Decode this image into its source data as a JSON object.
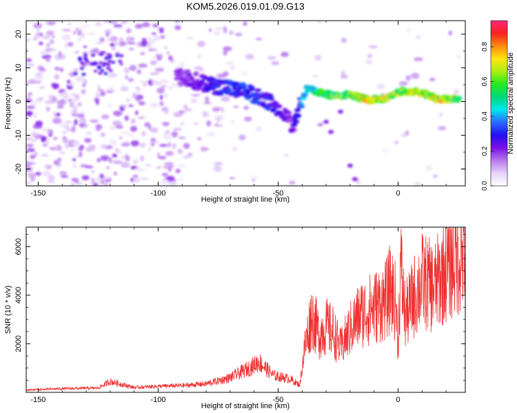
{
  "chart_data": [
    {
      "type": "heatmap",
      "title": "KOM5.2026.019.01.09.G13",
      "xlabel": "Height of straight line (km)",
      "ylabel": "Frequency (Hz)",
      "xlim": [
        -155,
        28
      ],
      "ylim": [
        -25,
        24
      ],
      "xticks": [
        -150,
        -100,
        -50,
        0
      ],
      "yticks": [
        -20,
        -10,
        0,
        10,
        20
      ],
      "colorbar": {
        "label": "Normalized spectral amplitude",
        "range": [
          0,
          0.95
        ],
        "ticks": [
          0.0,
          0.2,
          0.4,
          0.6,
          0.8
        ],
        "colors": [
          "#ffffff",
          "#e6d2f8",
          "#b878ee",
          "#7a10ea",
          "#2010f0",
          "#2a6cff",
          "#00e8f0",
          "#00d87a",
          "#23ea1e",
          "#aaee10",
          "#ffe410",
          "#ff8a10",
          "#f52020",
          "#ff2a78"
        ]
      },
      "ridge": [
        {
          "x": -125,
          "y": 11,
          "amp": 0.26
        },
        {
          "x": -88,
          "y": 7,
          "amp": 0.22
        },
        {
          "x": -80,
          "y": 5,
          "amp": 0.3
        },
        {
          "x": -70,
          "y": 4,
          "amp": 0.34
        },
        {
          "x": -62,
          "y": 2.5,
          "amp": 0.36
        },
        {
          "x": -55,
          "y": 0.5,
          "amp": 0.32
        },
        {
          "x": -48,
          "y": -3,
          "amp": 0.25
        },
        {
          "x": -44,
          "y": -7,
          "amp": 0.22
        },
        {
          "x": -38,
          "y": 4,
          "amp": 0.5
        },
        {
          "x": -30,
          "y": 2,
          "amp": 0.62
        },
        {
          "x": -20,
          "y": 2,
          "amp": 0.68
        },
        {
          "x": -12,
          "y": 0.5,
          "amp": 0.82
        },
        {
          "x": -5,
          "y": 1,
          "amp": 0.75
        },
        {
          "x": 2,
          "y": 3,
          "amp": 0.7
        },
        {
          "x": 10,
          "y": 2.5,
          "amp": 0.72
        },
        {
          "x": 18,
          "y": 0.5,
          "amp": 0.78
        },
        {
          "x": 26,
          "y": 1,
          "amp": 0.65
        }
      ]
    },
    {
      "type": "line",
      "xlabel": "Height of straight line (km)",
      "ylabel": "SNR (10 * v/v)",
      "xlim": [
        -155,
        28
      ],
      "ylim": [
        0,
        6800
      ],
      "xticks": [
        -150,
        -100,
        -50,
        0
      ],
      "yticks": [
        2000,
        4000,
        6000
      ],
      "color": "#f03030",
      "series": [
        {
          "name": "SNR",
          "x": [
            -155,
            -140,
            -125,
            -120,
            -110,
            -100,
            -90,
            -80,
            -70,
            -62,
            -58,
            -52,
            -45,
            -41,
            -39,
            -36,
            -33,
            -30,
            -27,
            -24,
            -20,
            -16,
            -12,
            -8,
            -5,
            -3,
            -1,
            0,
            1,
            3,
            6,
            10,
            15,
            20,
            24,
            28
          ],
          "values": [
            100,
            150,
            180,
            450,
            200,
            250,
            280,
            350,
            600,
            1000,
            1250,
            700,
            550,
            300,
            1800,
            3200,
            2400,
            2700,
            2500,
            1800,
            2600,
            3200,
            3400,
            3600,
            3800,
            4300,
            3700,
            2000,
            5200,
            3100,
            3800,
            4600,
            4300,
            5100,
            5500,
            5800
          ]
        }
      ]
    }
  ]
}
